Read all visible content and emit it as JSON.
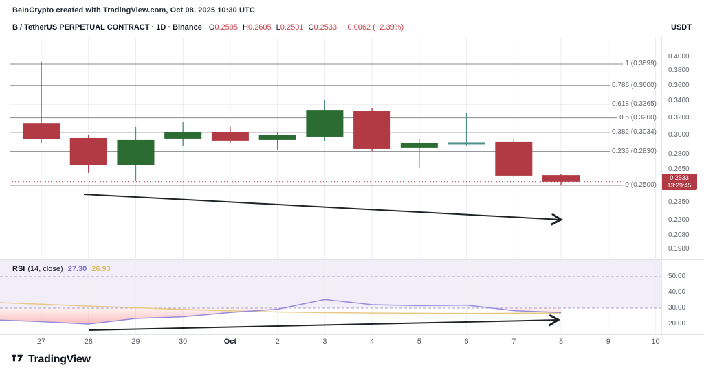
{
  "header": {
    "credit": "BeInCrypto created with TradingView.com, Oct 08, 2025 10:30 UTC",
    "symbol": "B / TetherUS PERPETUAL CONTRACT · 1D · Binance",
    "ohlc": [
      {
        "label": "O",
        "value": "0.2595"
      },
      {
        "label": "H",
        "value": "0.2605"
      },
      {
        "label": "L",
        "value": "0.2501"
      },
      {
        "label": "C",
        "value": "0.2533"
      }
    ],
    "change": "−0.0062 (−2.39%)",
    "quote_currency": "USDT"
  },
  "indicator": {
    "name": "RSI",
    "params": "(14, close)",
    "value": "27.30",
    "ma_value": "26.93"
  },
  "badge": {
    "price": "0.2533",
    "countdown": "13:29:45"
  },
  "logo_text": "TradingView",
  "colors": {
    "up": "#2c6b31",
    "down": "#b13a45",
    "neutral": "#4f9186",
    "wick_up": "#4f9186",
    "fib_line": "#87898e",
    "grid": "#ebedf1",
    "rsi_line": "#968ade",
    "rsi_ma": "#e6c985",
    "rsi_band_line": "#aaa2c7",
    "rsi_band_fill": "rgba(126,87,194,0.10)",
    "oversold_fill": "#ef5350",
    "arrow": "#1f2328",
    "value_red": "#c9444e",
    "rsi_value_purple": "#7e6fd8",
    "rsi_value_yellow": "#dfbc69"
  },
  "chart_data": [
    {
      "type": "candlestick",
      "pane": "price",
      "scale": "log",
      "x_labels": [
        {
          "text": "27"
        },
        {
          "text": "28"
        },
        {
          "text": "29"
        },
        {
          "text": "30"
        },
        {
          "text": "Oct",
          "bold": true
        },
        {
          "text": "2"
        },
        {
          "text": "3"
        },
        {
          "text": "4"
        },
        {
          "text": "5"
        },
        {
          "text": "6"
        },
        {
          "text": "7"
        },
        {
          "text": "8"
        },
        {
          "text": "9"
        },
        {
          "text": "10"
        }
      ],
      "candles": [
        {
          "date": "Sep 27",
          "open": 0.314,
          "high": 0.393,
          "low": 0.292,
          "close": 0.296
        },
        {
          "date": "Sep 28",
          "open": 0.2973,
          "high": 0.3003,
          "low": 0.2616,
          "close": 0.2689
        },
        {
          "date": "Sep 29",
          "open": 0.2689,
          "high": 0.3095,
          "low": 0.2544,
          "close": 0.2951
        },
        {
          "date": "Sep 30",
          "open": 0.2966,
          "high": 0.3149,
          "low": 0.2885,
          "close": 0.3034
        },
        {
          "date": "Oct 1",
          "open": 0.3034,
          "high": 0.3095,
          "low": 0.2921,
          "close": 0.2944
        },
        {
          "date": "Oct 2",
          "open": 0.2951,
          "high": 0.3041,
          "low": 0.2842,
          "close": 0.3003
        },
        {
          "date": "Oct 3",
          "open": 0.2988,
          "high": 0.3423,
          "low": 0.2936,
          "close": 0.3294
        },
        {
          "date": "Oct 4",
          "open": 0.3286,
          "high": 0.3319,
          "low": 0.2835,
          "close": 0.2856
        },
        {
          "date": "Oct 5",
          "open": 0.2871,
          "high": 0.2966,
          "low": 0.2663,
          "close": 0.2921
        },
        {
          "date": "Oct 6",
          "open": 0.2925,
          "high": 0.3254,
          "low": 0.2885,
          "close": 0.2921,
          "doji": true
        },
        {
          "date": "Oct 7",
          "open": 0.2929,
          "high": 0.2958,
          "low": 0.2577,
          "close": 0.259
        },
        {
          "date": "Oct 8",
          "open": 0.2595,
          "high": 0.2605,
          "low": 0.2501,
          "close": 0.2533
        }
      ],
      "fib_levels": [
        {
          "ratio": "1",
          "price": 0.3899
        },
        {
          "ratio": "0.786",
          "price": 0.36
        },
        {
          "ratio": "0.618",
          "price": 0.3365
        },
        {
          "ratio": "0.5",
          "price": 0.32
        },
        {
          "ratio": "0.382",
          "price": 0.3034
        },
        {
          "ratio": "0.236",
          "price": 0.283
        },
        {
          "ratio": "0",
          "price": 0.25
        }
      ],
      "price_ticks": [
        0.4,
        0.38,
        0.36,
        0.34,
        0.32,
        0.3,
        0.28,
        0.265,
        0.235,
        0.22,
        0.208,
        0.198
      ],
      "last_price": 0.2533,
      "trend_arrow": {
        "direction": "down"
      }
    },
    {
      "type": "line",
      "pane": "rsi",
      "title": "RSI (14, close)",
      "ticks": [
        50,
        40,
        30,
        20
      ],
      "levels": {
        "middle": 50,
        "lower": 30
      },
      "series": [
        {
          "name": "RSI",
          "values": [
            22.5,
            21.5,
            20.0,
            23.5,
            24.5,
            27.3,
            29.3,
            35.5,
            32.2,
            31.6,
            31.9,
            28.4,
            27.3
          ]
        },
        {
          "name": "RSI-based MA",
          "values": [
            33.5,
            32.5,
            31.3,
            30.2,
            29.2,
            28.3,
            27.6,
            27.2,
            26.9,
            26.8,
            26.7,
            26.8,
            26.93
          ]
        }
      ],
      "trend_arrow": {
        "direction": "up"
      }
    }
  ]
}
